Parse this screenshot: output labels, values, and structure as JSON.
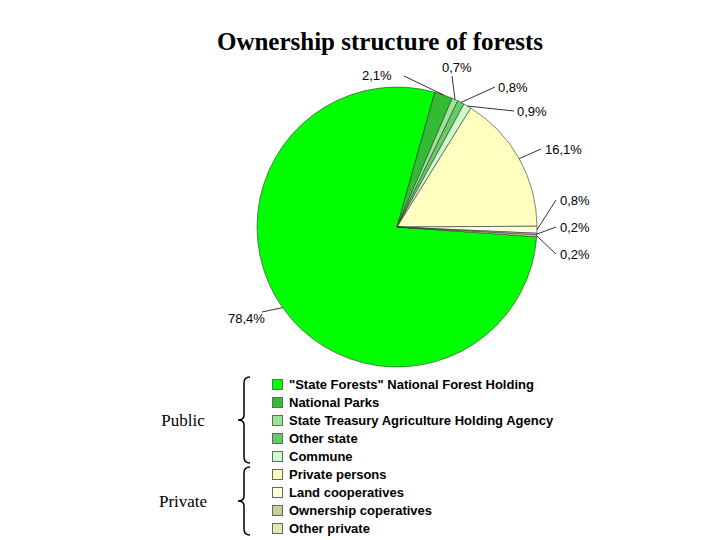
{
  "chart_data": {
    "type": "pie",
    "title": "Ownership structure of forests",
    "categories": [
      "\"State Forests\" National Forest Holding",
      "National Parks",
      "State Treasury Agriculture Holding Agency",
      "Other state",
      "Commune",
      "Private persons",
      "Land cooperatives",
      "Ownership coperatives",
      "Other private"
    ],
    "values": [
      78.4,
      2.1,
      0.7,
      0.8,
      0.9,
      16.1,
      0.8,
      0.2,
      0.2
    ],
    "value_labels": [
      "78,4%",
      "2,1%",
      "0,7%",
      "0,8%",
      "0,9%",
      "16,1%",
      "0,8%",
      "0,2%",
      "0,2%"
    ],
    "colors": [
      "#00ff00",
      "#33bb33",
      "#99e699",
      "#66cc66",
      "#ccffcc",
      "#ffffc0",
      "#ffffe0",
      "#cccc99",
      "#e6e6b3"
    ],
    "groups": [
      "Public",
      "Public",
      "Public",
      "Public",
      "Public",
      "Private",
      "Private",
      "Private",
      "Private"
    ],
    "data_labels": true,
    "legend": "bottom"
  }
}
